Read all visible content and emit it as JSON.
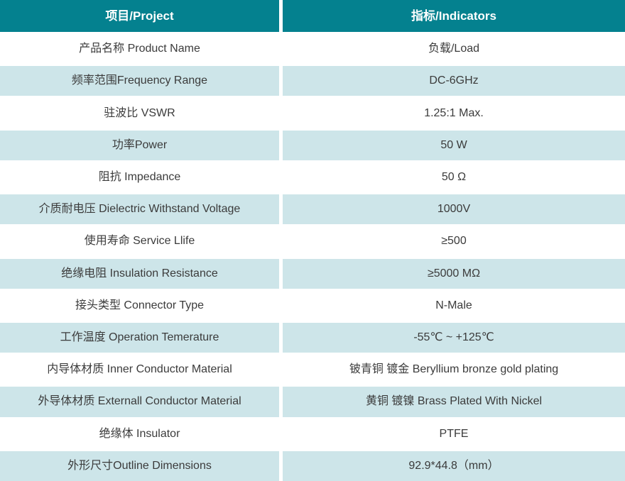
{
  "table": {
    "header": {
      "project": "项目/Project",
      "indicators": "指标/Indicators"
    },
    "rows": [
      {
        "project": "产品名称 Product Name",
        "indicator": "负载/Load"
      },
      {
        "project": "频率范围Frequency Range",
        "indicator": "DC-6GHz"
      },
      {
        "project": "驻波比 VSWR",
        "indicator": "1.25:1 Max."
      },
      {
        "project": "功率Power",
        "indicator": "50 W"
      },
      {
        "project": "阻抗 Impedance",
        "indicator": "50 Ω"
      },
      {
        "project": "介质耐电压 Dielectric Withstand Voltage",
        "indicator": "1000V"
      },
      {
        "project": "使用寿命 Service Llife",
        "indicator": "≥500"
      },
      {
        "project": "绝缘电阻 Insulation Resistance",
        "indicator": "≥5000 MΩ"
      },
      {
        "project": "接头类型 Connector Type",
        "indicator": "N-Male"
      },
      {
        "project": "工作温度 Operation Temerature",
        "indicator": "-55℃ ~ +125℃"
      },
      {
        "project": "内导体材质 Inner Conductor Material",
        "indicator": "铍青铜 镀金 Beryllium bronze gold plating"
      },
      {
        "project": "外导体材质 Externall Conductor Material",
        "indicator": "黄铜 镀镍 Brass Plated With Nickel"
      },
      {
        "project": "绝缘体 Insulator",
        "indicator": "PTFE"
      },
      {
        "project": "外形尺寸Outline Dimensions",
        "indicator": "92.9*44.8（mm）"
      }
    ],
    "colors": {
      "header_bg": "#04818f",
      "alt_row_bg": "#cde5e9",
      "row_bg": "#ffffff",
      "text": "#3b3b3b",
      "header_text": "#ffffff"
    }
  }
}
